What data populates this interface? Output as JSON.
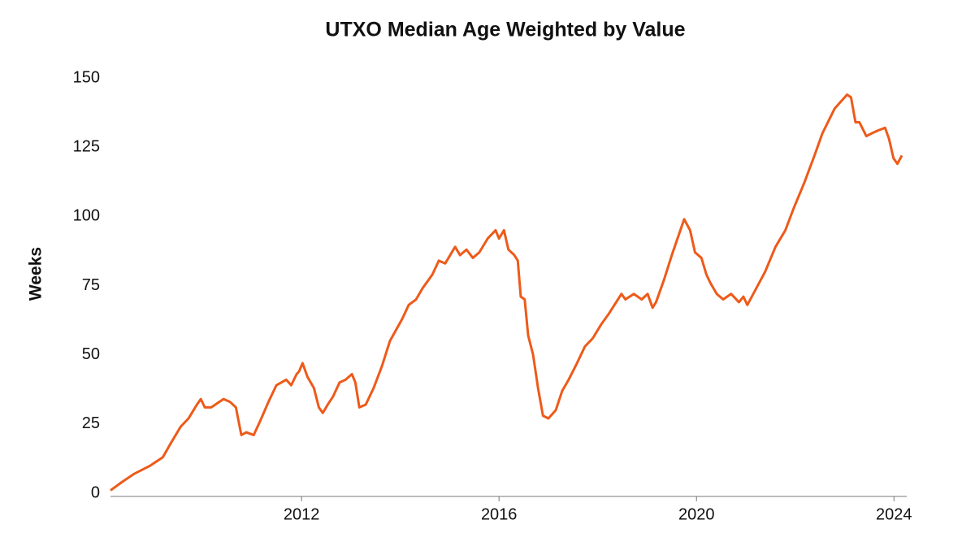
{
  "chart_data": {
    "type": "line",
    "title": "UTXO Median Age Weighted by Value",
    "y_label": "Weeks",
    "x": [
      2008.13,
      2008.36,
      2008.61,
      2008.94,
      2009.19,
      2009.35,
      2009.55,
      2009.71,
      2009.88,
      2009.96,
      2010.04,
      2010.17,
      2010.42,
      2010.55,
      2010.67,
      2010.78,
      2010.88,
      2011.03,
      2011.16,
      2011.33,
      2011.49,
      2011.69,
      2011.79,
      2011.9,
      2011.95,
      2012.02,
      2012.12,
      2012.25,
      2012.35,
      2012.43,
      2012.53,
      2012.64,
      2012.77,
      2012.89,
      2013.02,
      2013.09,
      2013.17,
      2013.3,
      2013.46,
      2013.63,
      2013.79,
      2014.04,
      2014.17,
      2014.32,
      2014.45,
      2014.65,
      2014.78,
      2014.91,
      2015.11,
      2015.21,
      2015.34,
      2015.47,
      2015.6,
      2015.77,
      2015.93,
      2016.0,
      2016.1,
      2016.19,
      2016.31,
      2016.38,
      2016.44,
      2016.52,
      2016.59,
      2016.69,
      2016.79,
      2016.89,
      2017.0,
      2017.15,
      2017.28,
      2017.41,
      2017.58,
      2017.74,
      2017.9,
      2018.07,
      2018.23,
      2018.48,
      2018.56,
      2018.73,
      2018.89,
      2019.01,
      2019.11,
      2019.18,
      2019.34,
      2019.5,
      2019.75,
      2019.87,
      2019.97,
      2020.1,
      2020.2,
      2020.28,
      2020.41,
      2020.54,
      2020.7,
      2020.86,
      2020.95,
      2021.03,
      2021.18,
      2021.39,
      2021.6,
      2021.8,
      2021.97,
      2022.18,
      2022.39,
      2022.55,
      2022.8,
      2023.05,
      2023.13,
      2023.22,
      2023.3,
      2023.44,
      2023.55,
      2023.67,
      2023.82,
      2023.9,
      2023.99,
      2024.07,
      2024.16
    ],
    "series": [
      {
        "name": "UTXO median age",
        "color": "#ee5a1a",
        "values": [
          1,
          4,
          7,
          10,
          13,
          18,
          24,
          27,
          32,
          34,
          31,
          31,
          34,
          33,
          31,
          21,
          22,
          21,
          26,
          33,
          39,
          41,
          39,
          43,
          44,
          47,
          42,
          38,
          31,
          29,
          32,
          35,
          40,
          41,
          43,
          40,
          31,
          32,
          38,
          46,
          55,
          63,
          68,
          70,
          74,
          79,
          84,
          83,
          89,
          86,
          88,
          85,
          87,
          92,
          95,
          92,
          95,
          88,
          86,
          84,
          71,
          70,
          57,
          50,
          38,
          28,
          27,
          30,
          37,
          41,
          47,
          53,
          56,
          61,
          65,
          72,
          70,
          72,
          70,
          72,
          67,
          69,
          77,
          86,
          99,
          95,
          87,
          85,
          79,
          76,
          72,
          70,
          72,
          69,
          71,
          68,
          73,
          80,
          89,
          95,
          103,
          112,
          122,
          130,
          139,
          144,
          143,
          134,
          134,
          129,
          130,
          131,
          132,
          128,
          121,
          119,
          122
        ]
      }
    ],
    "xlim": [
      2008.13,
      2024.16
    ],
    "xticks": [
      2012,
      2016,
      2020,
      2024
    ],
    "ylim": [
      0,
      150
    ],
    "yticks": [
      0,
      25,
      50,
      75,
      100,
      125,
      150
    ],
    "grid": false
  }
}
